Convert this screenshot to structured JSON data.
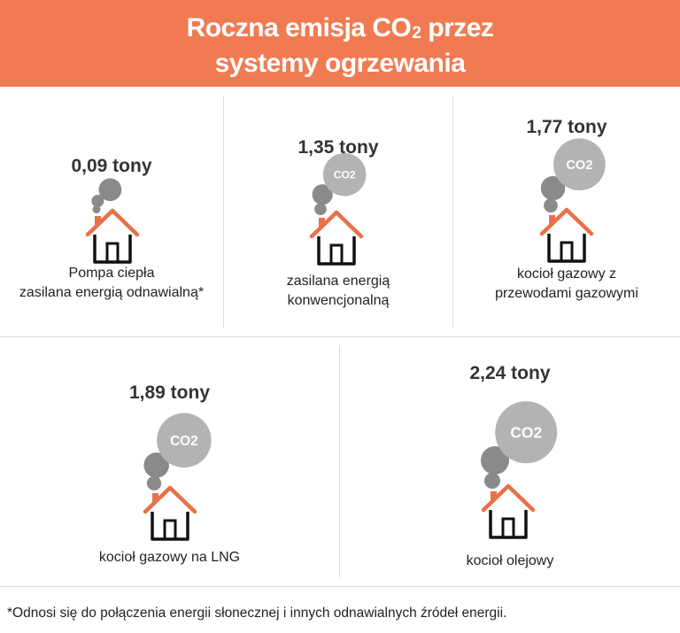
{
  "header": {
    "title_part1": "Roczna emisja CO",
    "title_sub": "2",
    "title_part2": " przez",
    "title_line2": "systemy ogrzewania"
  },
  "chart_data": {
    "type": "bar",
    "title": "Roczna emisja CO2 przez systemy ogrzewania",
    "unit": "tony",
    "categories": [
      "Pompa ciepła zasilana energią odnawialną*",
      "zasilana energią konwencjonalną",
      "kocioł gazowy z przewodami gazowymi",
      "kocioł gazowy na LNG",
      "kocioł olejowy"
    ],
    "values": [
      0.09,
      1.35,
      1.77,
      1.89,
      2.24
    ]
  },
  "panels": [
    {
      "value_label": "0,09 tony",
      "label_lines": [
        "Pompa ciepła",
        "zasilana energią odnawialną*"
      ],
      "co2_text": ""
    },
    {
      "value_label": "1,35 tony",
      "label_lines": [
        "zasilana energią",
        "konwencjonalną"
      ],
      "co2_text": "CO2"
    },
    {
      "value_label": "1,77 tony",
      "label_lines": [
        "kocioł gazowy z",
        "przewodami gazowymi"
      ],
      "co2_text": "CO2"
    },
    {
      "value_label": "1,89 tony",
      "label_lines": [
        "kocioł gazowy na LNG"
      ],
      "co2_text": "CO2"
    },
    {
      "value_label": "2,24 tony",
      "label_lines": [
        "kocioł olejowy"
      ],
      "co2_text": "CO2"
    }
  ],
  "footnote": "*Odnosi się do połączenia energii słonecznej i innych odnawialnych źródeł energii.",
  "colors": {
    "header": "#f07b52",
    "roof": "#e8704a",
    "house": "#111111",
    "smoke_dark": "#8a8a8a",
    "smoke_light": "#b3b3b3",
    "divider": "#dcdcdc"
  }
}
